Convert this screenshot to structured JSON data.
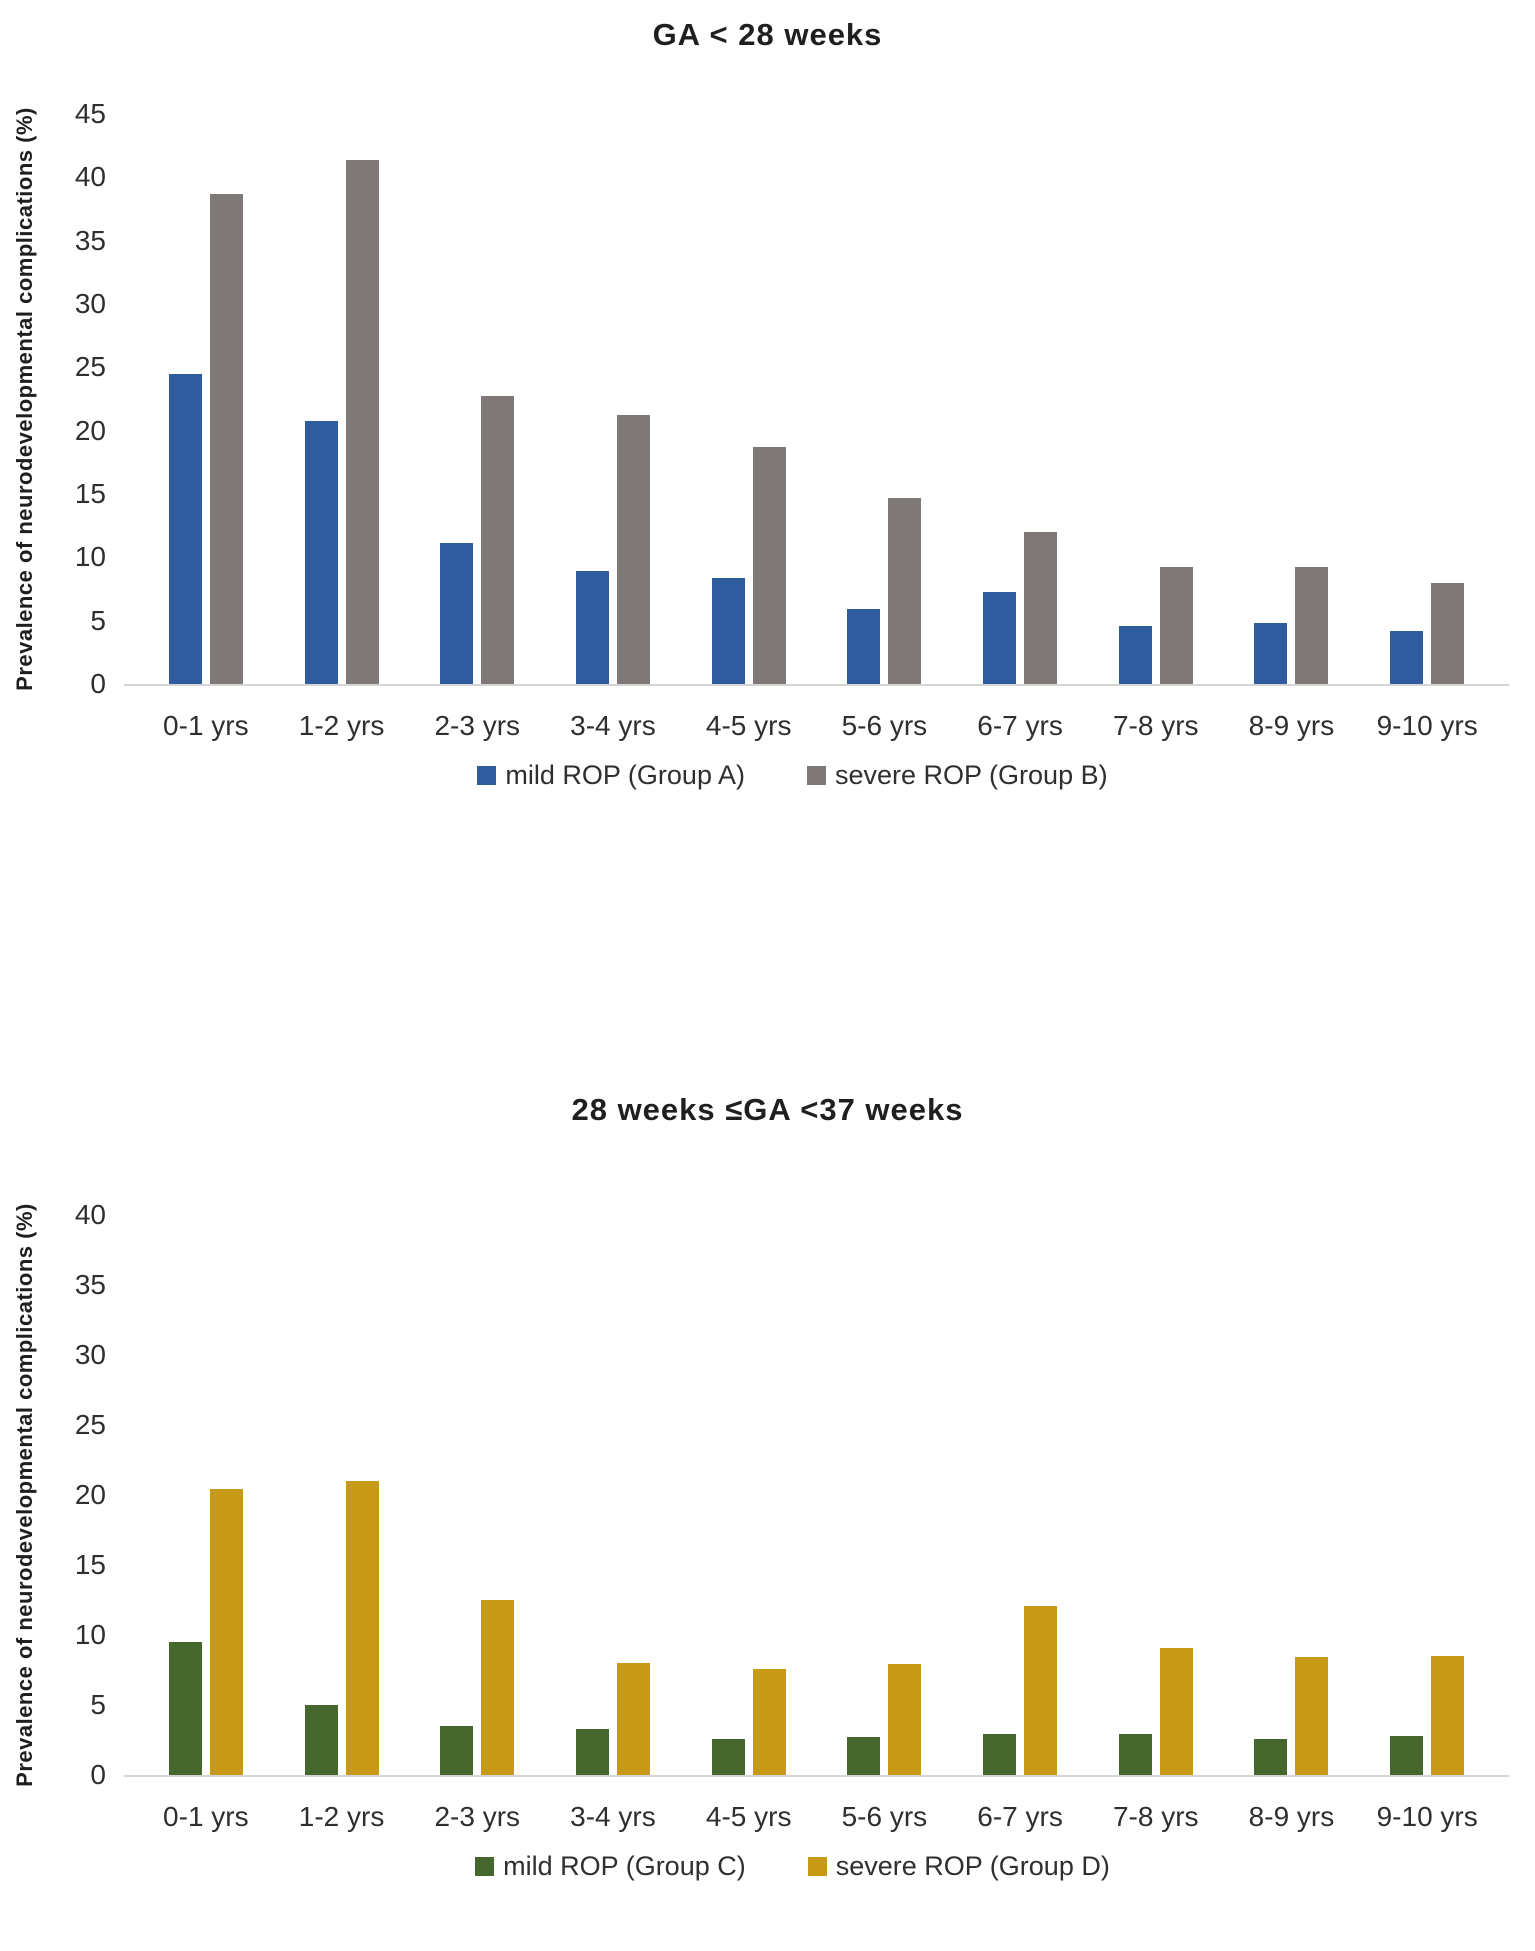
{
  "chart_data": [
    {
      "type": "bar",
      "title": "GA < 28 weeks",
      "ylabel": "Prevalence of neurodevelopmental complications (%)",
      "xlabel": "",
      "ymax": 45,
      "ytick_step": 5,
      "ylim": [
        0,
        45
      ],
      "grid": false,
      "legend_position": "bottom",
      "axis_line_color": "#d6d4d4",
      "categories": [
        "0-1 yrs",
        "1-2 yrs",
        "2-3 yrs",
        "3-4 yrs",
        "4-5 yrs",
        "5-6 yrs",
        "6-7 yrs",
        "7-8 yrs",
        "8-9 yrs",
        "9-10 yrs"
      ],
      "series": [
        {
          "name": "mild ROP (Group A)",
          "color": "#2E5C9F",
          "values": [
            24.5,
            20.8,
            11.1,
            8.9,
            8.4,
            5.9,
            7.3,
            4.6,
            4.8,
            4.2
          ]
        },
        {
          "name": "severe ROP (Group B)",
          "color": "#7E7876",
          "values": [
            38.7,
            41.4,
            22.7,
            21.2,
            18.7,
            14.7,
            12.0,
            9.2,
            9.2,
            8.0
          ]
        }
      ]
    },
    {
      "type": "bar",
      "title": "28 weeks ≤GA <37 weeks",
      "ylabel": "Prevalence of neurodevelopmental complications (%)",
      "xlabel": "",
      "ymax": 40,
      "ytick_step": 5,
      "ylim": [
        0,
        40
      ],
      "grid": false,
      "legend_position": "bottom",
      "axis_line_color": "#d6d4d4",
      "categories": [
        "0-1 yrs",
        "1-2 yrs",
        "2-3 yrs",
        "3-4 yrs",
        "4-5 yrs",
        "5-6 yrs",
        "6-7 yrs",
        "7-8 yrs",
        "8-9 yrs",
        "9-10 yrs"
      ],
      "series": [
        {
          "name": "mild ROP (Group C)",
          "color": "#45662D",
          "values": [
            9.5,
            5.0,
            3.5,
            3.3,
            2.6,
            2.7,
            2.9,
            2.9,
            2.6,
            2.8
          ]
        },
        {
          "name": "severe ROP (Group D)",
          "color": "#C69A15",
          "values": [
            20.4,
            21.0,
            12.5,
            8.0,
            7.6,
            7.9,
            12.1,
            9.1,
            8.4,
            8.5
          ]
        }
      ]
    }
  ]
}
